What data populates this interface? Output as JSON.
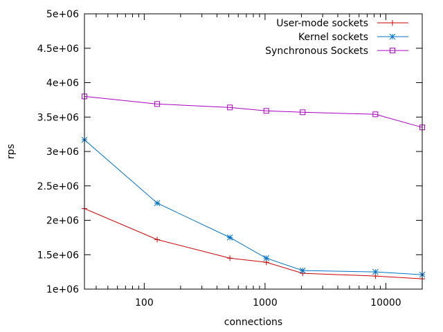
{
  "chart_data": {
    "type": "line",
    "xlabel": "connections",
    "ylabel": "rps",
    "xscale": "log",
    "xlim": [
      32,
      20000
    ],
    "ylim": [
      1000000,
      5000000
    ],
    "legend_position": "top-right",
    "grid": false,
    "x_ticks": [
      {
        "value": 100,
        "label": "100"
      },
      {
        "value": 1000,
        "label": "1000"
      },
      {
        "value": 10000,
        "label": "10000"
      }
    ],
    "y_ticks": [
      {
        "value": 1000000,
        "label": "1e+06"
      },
      {
        "value": 1500000,
        "label": "1.5e+06"
      },
      {
        "value": 2000000,
        "label": "2e+06"
      },
      {
        "value": 2500000,
        "label": "2.5e+06"
      },
      {
        "value": 3000000,
        "label": "3e+06"
      },
      {
        "value": 3500000,
        "label": "3.5e+06"
      },
      {
        "value": 4000000,
        "label": "4e+06"
      },
      {
        "value": 4500000,
        "label": "4.5e+06"
      },
      {
        "value": 5000000,
        "label": "5e+06"
      }
    ],
    "x": [
      32,
      128,
      512,
      1024,
      2048,
      8192,
      20000
    ],
    "series": [
      {
        "name": "User-mode sockets",
        "color": "#cc0000",
        "marker": "plus",
        "values": [
          2170000,
          1720000,
          1450000,
          1390000,
          1230000,
          1190000,
          1150000
        ]
      },
      {
        "name": "Kernel sockets",
        "color": "#0073c8",
        "marker": "star",
        "values": [
          3170000,
          2250000,
          1750000,
          1450000,
          1270000,
          1250000,
          1210000
        ]
      },
      {
        "name": "Synchronous Sockets",
        "color": "#a800c0",
        "marker": "square",
        "values": [
          3800000,
          3690000,
          3640000,
          3590000,
          3570000,
          3540000,
          3350000
        ]
      }
    ]
  }
}
